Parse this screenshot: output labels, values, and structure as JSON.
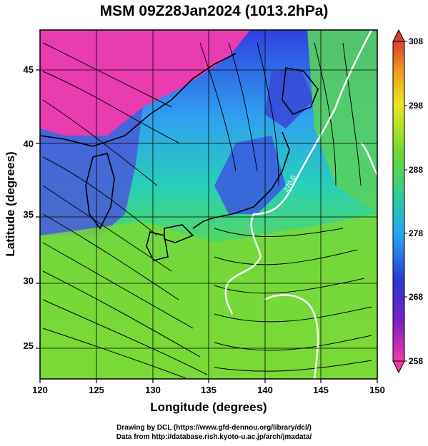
{
  "title": "MSM 09Z28Jan2024 (1013.2hPa)",
  "xlabel": "Longitude (degrees)",
  "ylabel": "Latitude  (degrees)",
  "xticks": [
    "120",
    "125",
    "130",
    "135",
    "140",
    "145",
    "150"
  ],
  "yticks": [
    "25",
    "30",
    "35",
    "40",
    "45"
  ],
  "colorbar_ticks": [
    "308",
    "298",
    "288",
    "278",
    "268",
    "258"
  ],
  "contour_label": "270.0",
  "credits": {
    "line1": "Drawing by DCL (https://www.gfd-dennou.org/library/dcl/)",
    "line2": "Data from http://database.rish.kyoto-u.ac.jp/arch/jmadata/"
  },
  "chart_data": {
    "type": "heatmap",
    "variable": "temperature (K) with wind streamlines",
    "xlim": [
      120,
      150
    ],
    "ylim": [
      22.5,
      48
    ],
    "colorbar_range": [
      258,
      308
    ],
    "colorbar_ticks": [
      308,
      298,
      288,
      278,
      268,
      258
    ],
    "contour_levels": [
      270.0
    ],
    "colors": {
      "warm": "#e43a2a",
      "mid": "#7edc2a",
      "cool": "#2aa8ee",
      "cold": "#2a3ed8",
      "coldest": "#ee33aa",
      "contour": "#ffffff"
    }
  }
}
